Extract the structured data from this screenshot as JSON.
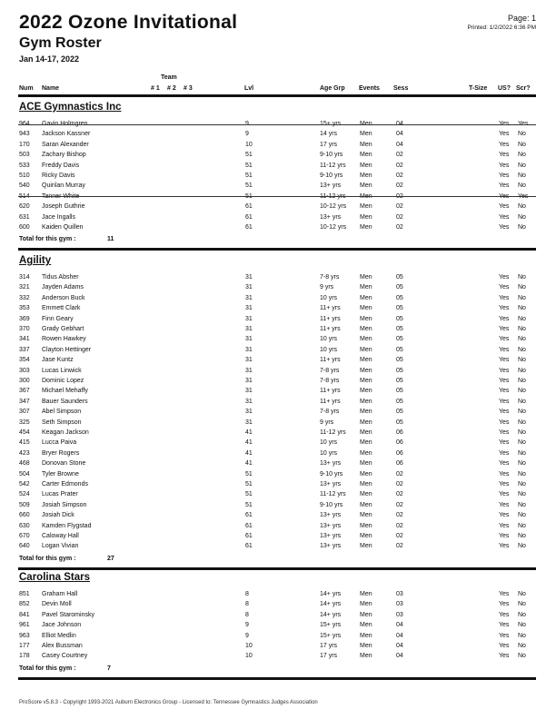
{
  "header": {
    "title": "2022 Ozone Invitational",
    "subtitle": "Gym Roster",
    "dates": "Jan 14-17, 2022",
    "page": "Page: 1",
    "printed": "Printed: 1/2/2022 6:36 PM"
  },
  "columns": {
    "team": "Team",
    "num": "Num",
    "name": "Name",
    "t1": "# 1",
    "t2": "# 2",
    "t3": "# 3",
    "lvl": "Lvl",
    "age": "Age Grp",
    "events": "Events",
    "sess": "Sess",
    "tsize": "T-Size",
    "us": "US?",
    "scr": "Scr?"
  },
  "gyms": [
    {
      "name": "ACE Gymnastics Inc",
      "total_label": "Total for this gym :",
      "total": "11",
      "rows": [
        {
          "num": "964",
          "name": "Gavin Holmgren",
          "lvl": "9",
          "age": "15+ yrs",
          "events": "Men",
          "sess": "04",
          "us": "Yes",
          "scr": "Yes",
          "scratched": true
        },
        {
          "num": "943",
          "name": "Jackson Kassner",
          "lvl": "9",
          "age": "14 yrs",
          "events": "Men",
          "sess": "04",
          "us": "Yes",
          "scr": "No"
        },
        {
          "num": "170",
          "name": "Saran Alexander",
          "lvl": "10",
          "age": "17 yrs",
          "events": "Men",
          "sess": "04",
          "us": "Yes",
          "scr": "No"
        },
        {
          "num": "503",
          "name": "Zachary Bishop",
          "lvl": "51",
          "age": "9-10 yrs",
          "events": "Men",
          "sess": "02",
          "us": "Yes",
          "scr": "No"
        },
        {
          "num": "533",
          "name": "Freddy Davis",
          "lvl": "51",
          "age": "11-12 yrs",
          "events": "Men",
          "sess": "02",
          "us": "Yes",
          "scr": "No"
        },
        {
          "num": "510",
          "name": "Ricky Davis",
          "lvl": "51",
          "age": "9-10 yrs",
          "events": "Men",
          "sess": "02",
          "us": "Yes",
          "scr": "No"
        },
        {
          "num": "540",
          "name": "Quinlan Murray",
          "lvl": "51",
          "age": "13+ yrs",
          "events": "Men",
          "sess": "02",
          "us": "Yes",
          "scr": "No"
        },
        {
          "num": "514",
          "name": "Tanner White",
          "lvl": "51",
          "age": "11-12 yrs",
          "events": "Men",
          "sess": "02",
          "us": "Yes",
          "scr": "Yes",
          "scratched": true
        },
        {
          "num": "620",
          "name": "Joseph Guthrie",
          "lvl": "61",
          "age": "10-12 yrs",
          "events": "Men",
          "sess": "02",
          "us": "Yes",
          "scr": "No"
        },
        {
          "num": "631",
          "name": "Jace Ingalls",
          "lvl": "61",
          "age": "13+ yrs",
          "events": "Men",
          "sess": "02",
          "us": "Yes",
          "scr": "No"
        },
        {
          "num": "600",
          "name": "Kaiden Quillen",
          "lvl": "61",
          "age": "10-12 yrs",
          "events": "Men",
          "sess": "02",
          "us": "Yes",
          "scr": "No"
        }
      ]
    },
    {
      "name": "Agility",
      "total_label": "Total for this gym :",
      "total": "27",
      "rows": [
        {
          "num": "314",
          "name": "Tidus Absher",
          "lvl": "31",
          "age": "7-8 yrs",
          "events": "Men",
          "sess": "05",
          "us": "Yes",
          "scr": "No"
        },
        {
          "num": "321",
          "name": "Jayden Adams",
          "lvl": "31",
          "age": "9 yrs",
          "events": "Men",
          "sess": "05",
          "us": "Yes",
          "scr": "No"
        },
        {
          "num": "332",
          "name": "Anderson Buck",
          "lvl": "31",
          "age": "10 yrs",
          "events": "Men",
          "sess": "05",
          "us": "Yes",
          "scr": "No"
        },
        {
          "num": "353",
          "name": "Emmett Clark",
          "lvl": "31",
          "age": "11+ yrs",
          "events": "Men",
          "sess": "05",
          "us": "Yes",
          "scr": "No"
        },
        {
          "num": "369",
          "name": "Finn Geary",
          "lvl": "31",
          "age": "11+ yrs",
          "events": "Men",
          "sess": "05",
          "us": "Yes",
          "scr": "No"
        },
        {
          "num": "370",
          "name": "Grady Gebhart",
          "lvl": "31",
          "age": "11+ yrs",
          "events": "Men",
          "sess": "05",
          "us": "Yes",
          "scr": "No"
        },
        {
          "num": "341",
          "name": "Rowen Hawkey",
          "lvl": "31",
          "age": "10 yrs",
          "events": "Men",
          "sess": "05",
          "us": "Yes",
          "scr": "No"
        },
        {
          "num": "337",
          "name": "Clayton Hettinger",
          "lvl": "31",
          "age": "10 yrs",
          "events": "Men",
          "sess": "05",
          "us": "Yes",
          "scr": "No"
        },
        {
          "num": "354",
          "name": "Jase Kuntz",
          "lvl": "31",
          "age": "11+ yrs",
          "events": "Men",
          "sess": "05",
          "us": "Yes",
          "scr": "No"
        },
        {
          "num": "303",
          "name": "Lucas Linwick",
          "lvl": "31",
          "age": "7-8 yrs",
          "events": "Men",
          "sess": "05",
          "us": "Yes",
          "scr": "No"
        },
        {
          "num": "300",
          "name": "Dominic Lopez",
          "lvl": "31",
          "age": "7-8 yrs",
          "events": "Men",
          "sess": "05",
          "us": "Yes",
          "scr": "No"
        },
        {
          "num": "367",
          "name": "Michael Mehaffy",
          "lvl": "31",
          "age": "11+ yrs",
          "events": "Men",
          "sess": "05",
          "us": "Yes",
          "scr": "No"
        },
        {
          "num": "347",
          "name": "Bauer Saunders",
          "lvl": "31",
          "age": "11+ yrs",
          "events": "Men",
          "sess": "05",
          "us": "Yes",
          "scr": "No"
        },
        {
          "num": "307",
          "name": "Abel Simpson",
          "lvl": "31",
          "age": "7-8 yrs",
          "events": "Men",
          "sess": "05",
          "us": "Yes",
          "scr": "No"
        },
        {
          "num": "325",
          "name": "Seth Simpson",
          "lvl": "31",
          "age": "9 yrs",
          "events": "Men",
          "sess": "05",
          "us": "Yes",
          "scr": "No"
        },
        {
          "num": "454",
          "name": "Keagan Jackson",
          "lvl": "41",
          "age": "11-12 yrs",
          "events": "Men",
          "sess": "06",
          "us": "Yes",
          "scr": "No"
        },
        {
          "num": "415",
          "name": "Lucca Paiva",
          "lvl": "41",
          "age": "10 yrs",
          "events": "Men",
          "sess": "06",
          "us": "Yes",
          "scr": "No"
        },
        {
          "num": "423",
          "name": "Bryer Rogers",
          "lvl": "41",
          "age": "10 yrs",
          "events": "Men",
          "sess": "06",
          "us": "Yes",
          "scr": "No"
        },
        {
          "num": "468",
          "name": "Donovan Stone",
          "lvl": "41",
          "age": "13+ yrs",
          "events": "Men",
          "sess": "06",
          "us": "Yes",
          "scr": "No"
        },
        {
          "num": "504",
          "name": "Tyler Browne",
          "lvl": "51",
          "age": "9-10 yrs",
          "events": "Men",
          "sess": "02",
          "us": "Yes",
          "scr": "No"
        },
        {
          "num": "542",
          "name": "Carter Edmonds",
          "lvl": "51",
          "age": "13+ yrs",
          "events": "Men",
          "sess": "02",
          "us": "Yes",
          "scr": "No"
        },
        {
          "num": "524",
          "name": "Lucas Prater",
          "lvl": "51",
          "age": "11-12 yrs",
          "events": "Men",
          "sess": "02",
          "us": "Yes",
          "scr": "No"
        },
        {
          "num": "509",
          "name": "Josiah Simpson",
          "lvl": "51",
          "age": "9-10 yrs",
          "events": "Men",
          "sess": "02",
          "us": "Yes",
          "scr": "No"
        },
        {
          "num": "660",
          "name": "Josiah Dick",
          "lvl": "61",
          "age": "13+ yrs",
          "events": "Men",
          "sess": "02",
          "us": "Yes",
          "scr": "No"
        },
        {
          "num": "630",
          "name": "Kamden Flygstad",
          "lvl": "61",
          "age": "13+ yrs",
          "events": "Men",
          "sess": "02",
          "us": "Yes",
          "scr": "No"
        },
        {
          "num": "670",
          "name": "Caloway Hall",
          "lvl": "61",
          "age": "13+ yrs",
          "events": "Men",
          "sess": "02",
          "us": "Yes",
          "scr": "No"
        },
        {
          "num": "640",
          "name": "Logan Vivian",
          "lvl": "61",
          "age": "13+ yrs",
          "events": "Men",
          "sess": "02",
          "us": "Yes",
          "scr": "No"
        }
      ]
    },
    {
      "name": "Carolina Stars",
      "total_label": "Total for this gym :",
      "total": "7",
      "rows": [
        {
          "num": "851",
          "name": "Graham Hall",
          "lvl": "8",
          "age": "14+ yrs",
          "events": "Men",
          "sess": "03",
          "us": "Yes",
          "scr": "No"
        },
        {
          "num": "852",
          "name": "Devin Moll",
          "lvl": "8",
          "age": "14+ yrs",
          "events": "Men",
          "sess": "03",
          "us": "Yes",
          "scr": "No"
        },
        {
          "num": "841",
          "name": "Pavel Starominsky",
          "lvl": "8",
          "age": "14+ yrs",
          "events": "Men",
          "sess": "03",
          "us": "Yes",
          "scr": "No"
        },
        {
          "num": "961",
          "name": "Jace Johnson",
          "lvl": "9",
          "age": "15+ yrs",
          "events": "Men",
          "sess": "04",
          "us": "Yes",
          "scr": "No"
        },
        {
          "num": "963",
          "name": "Elliot Medlin",
          "lvl": "9",
          "age": "15+ yrs",
          "events": "Men",
          "sess": "04",
          "us": "Yes",
          "scr": "No"
        },
        {
          "num": "177",
          "name": "Alex Bussman",
          "lvl": "10",
          "age": "17 yrs",
          "events": "Men",
          "sess": "04",
          "us": "Yes",
          "scr": "No"
        },
        {
          "num": "178",
          "name": "Casey Courtney",
          "lvl": "10",
          "age": "17 yrs",
          "events": "Men",
          "sess": "04",
          "us": "Yes",
          "scr": "No"
        }
      ]
    }
  ],
  "footer": "ProScore v5.8.3 - Copyright 1993-2021 Auburn Electronics Group - Licensed to: Tennessee Gymnastics Judges Association"
}
